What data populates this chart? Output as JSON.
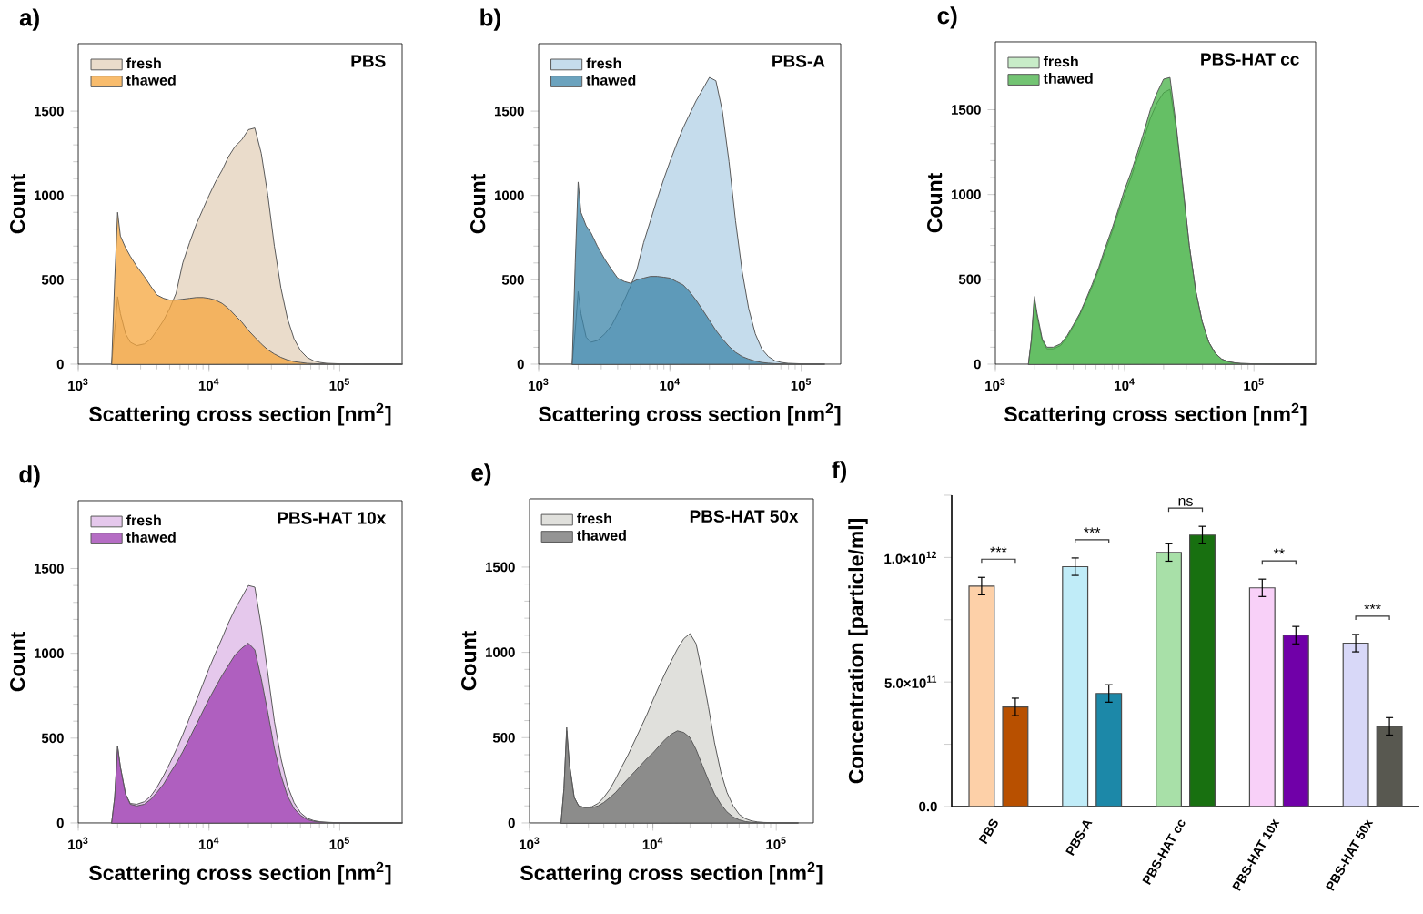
{
  "chart_data": [
    {
      "type": "area",
      "title": "PBS",
      "annotations": [
        "a)"
      ],
      "xlabel": "Scattering cross section [nm$^{2}$]",
      "ylabel": "Count",
      "log": "x",
      "legend": "top left",
      "xlim": [
        1000,
        300000
      ],
      "xticks": [
        {
          "value": 1000,
          "label": "10$^{3}$"
        },
        {
          "value": 10000,
          "label": "10$^{4}$"
        },
        {
          "value": 100000,
          "label": "10$^{5}$"
        }
      ],
      "ylim": [
        0,
        1900
      ],
      "yticks": [
        0,
        500,
        1000,
        1500
      ],
      "x": [
        1800,
        1900,
        2000,
        2100,
        2300,
        2500,
        2800,
        3200,
        3600,
        4000,
        4500,
        5000,
        5600,
        6300,
        7100,
        8000,
        9000,
        10000,
        11200,
        12600,
        14100,
        15800,
        17800,
        20000,
        22400,
        25100,
        28200,
        31600,
        35500,
        39800,
        44700,
        50100,
        56200,
        63100,
        70800,
        79400,
        100000,
        150000,
        300000
      ],
      "series": [
        {
          "name": "fresh",
          "color": "#eadccb",
          "values": [
            0,
            200,
            400,
            300,
            180,
            130,
            110,
            120,
            150,
            200,
            260,
            330,
            420,
            600,
            720,
            830,
            920,
            1000,
            1080,
            1150,
            1230,
            1290,
            1330,
            1390,
            1400,
            1250,
            1000,
            700,
            450,
            270,
            150,
            80,
            40,
            20,
            10,
            5,
            2,
            0,
            0
          ]
        },
        {
          "name": "thawed",
          "color": "#f5a53c",
          "values": [
            0,
            500,
            900,
            760,
            690,
            640,
            580,
            520,
            460,
            410,
            390,
            380,
            380,
            385,
            390,
            395,
            395,
            390,
            380,
            360,
            330,
            290,
            250,
            200,
            160,
            120,
            85,
            60,
            40,
            25,
            15,
            10,
            5,
            3,
            2,
            1,
            0,
            0,
            0
          ]
        }
      ]
    },
    {
      "type": "area",
      "title": "PBS-A",
      "annotations": [
        "b)"
      ],
      "xlabel": "Scattering cross section [nm$^{2}$]",
      "ylabel": "Count",
      "log": "x",
      "legend": "top left",
      "xlim": [
        1000,
        200000
      ],
      "xticks": [
        {
          "value": 1000,
          "label": "10$^{3}$"
        },
        {
          "value": 10000,
          "label": "10$^{4}$"
        },
        {
          "value": 100000,
          "label": "10$^{5}$"
        }
      ],
      "ylim": [
        0,
        1900
      ],
      "yticks": [
        0,
        500,
        1000,
        1500
      ],
      "x": [
        1800,
        1900,
        2000,
        2100,
        2300,
        2500,
        2800,
        3200,
        3600,
        4000,
        4500,
        5000,
        5600,
        6300,
        7100,
        8000,
        9000,
        10000,
        11200,
        12600,
        14100,
        15800,
        17800,
        20000,
        22400,
        25100,
        28200,
        31600,
        35500,
        39800,
        44700,
        50100,
        56200,
        63100,
        70800,
        79400,
        100000,
        150000
      ],
      "series": [
        {
          "name": "fresh",
          "color": "#c5dcec",
          "values": [
            0,
            200,
            430,
            300,
            160,
            130,
            140,
            180,
            230,
            300,
            380,
            460,
            560,
            720,
            850,
            980,
            1100,
            1200,
            1300,
            1400,
            1480,
            1560,
            1630,
            1700,
            1680,
            1500,
            1200,
            850,
            550,
            330,
            180,
            90,
            45,
            20,
            10,
            5,
            2,
            0
          ]
        },
        {
          "name": "thawed",
          "color": "#3b84a8",
          "values": [
            0,
            600,
            1080,
            900,
            820,
            780,
            700,
            620,
            560,
            510,
            490,
            480,
            500,
            510,
            520,
            520,
            515,
            510,
            490,
            470,
            430,
            380,
            320,
            260,
            200,
            150,
            105,
            70,
            45,
            30,
            18,
            10,
            6,
            3,
            2,
            1,
            0,
            0
          ]
        }
      ]
    },
    {
      "type": "area",
      "title": "PBS-HAT cc",
      "annotations": [
        "c)"
      ],
      "xlabel": "Scattering cross section [nm$^{2}$]",
      "ylabel": "Count",
      "log": "x",
      "legend": "top left",
      "xlim": [
        1000,
        300000
      ],
      "xticks": [
        {
          "value": 1000,
          "label": "10$^{3}$"
        },
        {
          "value": 10000,
          "label": "10$^{4}$"
        },
        {
          "value": 100000,
          "label": "10$^{5}$"
        }
      ],
      "ylim": [
        0,
        1900
      ],
      "yticks": [
        0,
        500,
        1000,
        1500
      ],
      "x": [
        1800,
        1900,
        2000,
        2100,
        2300,
        2500,
        2800,
        3200,
        3600,
        4000,
        4500,
        5000,
        5600,
        6300,
        7100,
        8000,
        9000,
        10000,
        11200,
        12600,
        14100,
        15800,
        17800,
        20000,
        22400,
        25100,
        28200,
        31600,
        35500,
        39800,
        44700,
        50100,
        56200,
        63100,
        70800,
        79400,
        100000,
        150000,
        300000
      ],
      "series": [
        {
          "name": "fresh",
          "color": "#c8ecc8",
          "values": [
            0,
            140,
            380,
            280,
            140,
            90,
            90,
            110,
            160,
            220,
            290,
            370,
            455,
            555,
            670,
            780,
            900,
            1000,
            1100,
            1220,
            1330,
            1450,
            1540,
            1600,
            1620,
            1380,
            1040,
            700,
            430,
            250,
            130,
            65,
            30,
            15,
            8,
            4,
            2,
            0,
            0
          ]
        },
        {
          "name": "thawed",
          "color": "#44b044",
          "values": [
            0,
            150,
            400,
            300,
            150,
            100,
            100,
            120,
            170,
            230,
            300,
            380,
            470,
            570,
            690,
            800,
            920,
            1030,
            1130,
            1250,
            1370,
            1500,
            1600,
            1680,
            1690,
            1400,
            1050,
            700,
            430,
            250,
            130,
            65,
            30,
            15,
            8,
            4,
            2,
            0,
            0
          ]
        }
      ]
    },
    {
      "type": "area",
      "title": "PBS-HAT 10x",
      "annotations": [
        "d)"
      ],
      "xlabel": "Scattering cross section [nm$^{2}$]",
      "ylabel": "Count",
      "log": "x",
      "legend": "top left",
      "xlim": [
        1000,
        300000
      ],
      "xticks": [
        {
          "value": 1000,
          "label": "10$^{3}$"
        },
        {
          "value": 10000,
          "label": "10$^{4}$"
        },
        {
          "value": 100000,
          "label": "10$^{5}$"
        }
      ],
      "ylim": [
        0,
        1900
      ],
      "yticks": [
        0,
        500,
        1000,
        1500
      ],
      "x": [
        1800,
        1900,
        2000,
        2100,
        2300,
        2500,
        2800,
        3200,
        3600,
        4000,
        4500,
        5000,
        5600,
        6300,
        7100,
        8000,
        9000,
        10000,
        11200,
        12600,
        14100,
        15800,
        17800,
        20000,
        22400,
        25100,
        28200,
        31600,
        35500,
        39800,
        44700,
        50100,
        56200,
        63100,
        70800,
        79400,
        100000,
        150000,
        300000
      ],
      "series": [
        {
          "name": "fresh",
          "color": "#e5c8ec",
          "values": [
            0,
            150,
            450,
            330,
            170,
            115,
            110,
            125,
            160,
            210,
            280,
            350,
            430,
            520,
            620,
            720,
            820,
            910,
            1000,
            1090,
            1180,
            1260,
            1330,
            1400,
            1390,
            1160,
            880,
            600,
            380,
            220,
            120,
            60,
            28,
            14,
            7,
            4,
            1,
            0,
            0
          ]
        },
        {
          "name": "thawed",
          "color": "#9c3cb0",
          "values": [
            0,
            150,
            450,
            330,
            170,
            110,
            100,
            110,
            140,
            180,
            230,
            290,
            350,
            420,
            500,
            580,
            660,
            730,
            800,
            870,
            930,
            990,
            1030,
            1060,
            1020,
            850,
            650,
            440,
            280,
            160,
            85,
            45,
            20,
            10,
            5,
            3,
            1,
            0,
            0
          ]
        }
      ]
    },
    {
      "type": "area",
      "title": "PBS-HAT 50x",
      "annotations": [
        "e)"
      ],
      "xlabel": "Scattering cross section [nm$^{2}$]",
      "ylabel": "Count",
      "log": "x",
      "legend": "top left",
      "xlim": [
        1000,
        200000
      ],
      "xticks": [
        {
          "value": 1000,
          "label": "10$^{3}$"
        },
        {
          "value": 10000,
          "label": "10$^{4}$"
        },
        {
          "value": 100000,
          "label": "10$^{5}$"
        }
      ],
      "ylim": [
        0,
        1900
      ],
      "yticks": [
        0,
        500,
        1000,
        1500
      ],
      "x": [
        1800,
        1900,
        2000,
        2100,
        2300,
        2500,
        2800,
        3200,
        3600,
        4000,
        4500,
        5000,
        5600,
        6300,
        7100,
        8000,
        9000,
        10000,
        11200,
        12600,
        14100,
        15800,
        17800,
        20000,
        22400,
        25100,
        28200,
        31600,
        35500,
        39800,
        44700,
        50100,
        56200,
        63100,
        70800,
        79400,
        100000,
        150000
      ],
      "series": [
        {
          "name": "fresh",
          "color": "#e0e0dc",
          "values": [
            0,
            200,
            540,
            350,
            150,
            100,
            90,
            95,
            115,
            150,
            200,
            260,
            330,
            400,
            480,
            560,
            640,
            720,
            800,
            880,
            950,
            1020,
            1080,
            1110,
            1050,
            880,
            680,
            470,
            300,
            180,
            100,
            50,
            25,
            12,
            6,
            3,
            1,
            0
          ]
        },
        {
          "name": "thawed",
          "color": "#707070",
          "values": [
            0,
            200,
            560,
            350,
            150,
            100,
            90,
            90,
            100,
            120,
            150,
            180,
            220,
            260,
            300,
            340,
            380,
            410,
            450,
            490,
            520,
            540,
            530,
            500,
            430,
            340,
            250,
            170,
            110,
            65,
            35,
            18,
            8,
            4,
            2,
            1,
            0,
            0
          ]
        }
      ]
    },
    {
      "type": "bar",
      "annotations": [
        "f)",
        "***",
        "***",
        "ns",
        "**",
        "***"
      ],
      "ylabel": "Concentration [particle/ml]",
      "categories": [
        "PBS",
        "PBS-A",
        "PBS-HAT cc",
        "PBS-HAT 10x",
        "PBS-HAT 50x"
      ],
      "ylim": [
        0,
        1250000000000
      ],
      "yticks": [
        {
          "value": 0,
          "label": "0.0"
        },
        {
          "value": 250000000000,
          "label": null
        },
        {
          "value": 500000000000,
          "label": "5.0×10$^{11}$"
        },
        {
          "value": 750000000000,
          "label": null
        },
        {
          "value": 1000000000000,
          "label": "1.0×10$^{12}$"
        },
        {
          "value": 1250000000000,
          "label": null
        }
      ],
      "series": [
        {
          "colors": [
            "#fdd0a8",
            "#c0ecf8",
            "#a8e0a8",
            "#f8d0f8",
            "#d8d8f8"
          ],
          "values": [
            885000000000,
            963000000000,
            1020000000000,
            878000000000,
            656000000000
          ],
          "errors": [
            35000000000,
            35000000000,
            35000000000,
            35000000000,
            35000000000
          ]
        },
        {
          "colors": [
            "#b85000",
            "#1c88a8",
            "#187010",
            "#7000a8",
            "#585850"
          ],
          "values": [
            400000000000,
            454000000000,
            1090000000000,
            688000000000,
            322000000000
          ],
          "errors": [
            35000000000,
            35000000000,
            35000000000,
            35000000000,
            35000000000
          ]
        }
      ]
    }
  ]
}
